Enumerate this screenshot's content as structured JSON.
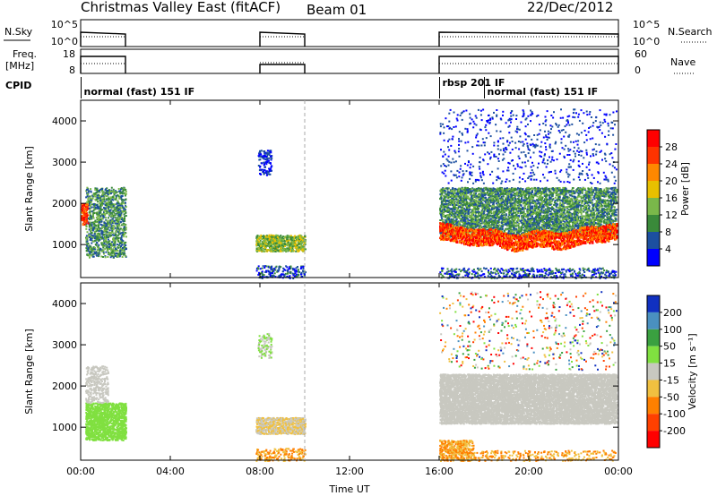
{
  "header": {
    "title": "Christmas Valley East (fitACF)",
    "beam": "Beam 01",
    "date": "22/Dec/2012"
  },
  "side_labels": {
    "nsky": "N.Sky",
    "nsearch": "N.Search",
    "freq": "Freq.",
    "freq_unit": "[MHz]",
    "nave": "Nave",
    "cpid": "CPID"
  },
  "noise_axis": {
    "left": [
      "10^5",
      "10^0"
    ],
    "right": [
      "10^5",
      "10^0"
    ]
  },
  "freq_axis": {
    "left": [
      "18",
      "8"
    ],
    "right": [
      "60",
      "0"
    ]
  },
  "cpid_labels": [
    {
      "text": "normal (fast) 151 IF",
      "hour": 0.1
    },
    {
      "text": "rbsp 201 IF",
      "hour": 16.1
    },
    {
      "text": "normal (fast) 151 IF",
      "hour": 18.1
    }
  ],
  "operation_segments": [
    [
      0,
      2
    ],
    [
      8,
      10
    ],
    [
      16,
      24
    ]
  ],
  "x_axis": {
    "label": "Time UT",
    "ticks": [
      "00:00",
      "04:00",
      "08:00",
      "12:00",
      "16:00",
      "20:00",
      "00:00"
    ],
    "range_hours": [
      0,
      24
    ]
  },
  "y_axis": {
    "label": "Slant Range [km]",
    "ticks": [
      "1000",
      "2000",
      "3000",
      "4000"
    ],
    "range_km": [
      200,
      4500
    ]
  },
  "power_scale": {
    "label": "Power [dB]",
    "ticks": [
      "4",
      "8",
      "12",
      "16",
      "20",
      "24",
      "28"
    ],
    "colors": [
      "#0000ff",
      "#1c4fa0",
      "#3a8a3a",
      "#7ab84a",
      "#e8c000",
      "#ff8800",
      "#ff3300",
      "#ff0000"
    ]
  },
  "velocity_scale": {
    "label": "Velocity [m s⁻¹]",
    "ticks": [
      "200",
      "100",
      "50",
      "15",
      "-15",
      "-50",
      "-100",
      "-200"
    ],
    "colors": [
      "#1030c0",
      "#4a90c0",
      "#3aa040",
      "#80e040",
      "#c8c8c0",
      "#f0c040",
      "#ff8000",
      "#ff4000",
      "#ff0000"
    ]
  },
  "chart_data": [
    {
      "type": "heatmap",
      "title": "",
      "xlabel": "Time UT",
      "ylabel": "Slant Range [km]",
      "colorbar": "Power [dB]",
      "xlim_hours": [
        0,
        24
      ],
      "ylim_km": [
        200,
        4500
      ],
      "regions": [
        {
          "t0": 0.0,
          "t1": 0.3,
          "r0": 1500,
          "r1": 2000,
          "value": "power 20-28 dB"
        },
        {
          "t0": 0.2,
          "t1": 2.0,
          "r0": 700,
          "r1": 2400,
          "value": "power 4-16 dB"
        },
        {
          "t0": 7.9,
          "t1": 8.5,
          "r0": 2700,
          "r1": 3300,
          "value": "power 4-8 dB"
        },
        {
          "t0": 7.8,
          "t1": 10.0,
          "r0": 850,
          "r1": 1250,
          "value": "power 12-20 dB"
        },
        {
          "t0": 16.0,
          "t1": 23.9,
          "r0": 900,
          "r1": 1800,
          "value": "power 20-28 dB"
        },
        {
          "t0": 16.0,
          "t1": 23.9,
          "r0": 1200,
          "r1": 2400,
          "value": "power 4-16 dB"
        },
        {
          "t0": 16.0,
          "t1": 23.9,
          "r0": 2500,
          "r1": 4300,
          "value": "power 4-8 dB scattered"
        }
      ]
    },
    {
      "type": "heatmap",
      "title": "",
      "xlabel": "Time UT",
      "ylabel": "Slant Range [km]",
      "colorbar": "Velocity [m s⁻¹]",
      "xlim_hours": [
        0,
        24
      ],
      "ylim_km": [
        200,
        4500
      ],
      "regions": [
        {
          "t0": 0.2,
          "t1": 2.0,
          "r0": 700,
          "r1": 1600,
          "value": "velocity 15-50 m/s"
        },
        {
          "t0": 0.2,
          "t1": 1.2,
          "r0": 1600,
          "r1": 2500,
          "value": "velocity -15-15 m/s"
        },
        {
          "t0": 7.8,
          "t1": 10.0,
          "r0": 850,
          "r1": 1250,
          "value": "velocity -50-15 m/s"
        },
        {
          "t0": 16.0,
          "t1": 23.9,
          "r0": 1100,
          "r1": 2300,
          "value": "velocity -15-15 m/s"
        },
        {
          "t0": 16.0,
          "t1": 17.5,
          "r0": 200,
          "r1": 700,
          "value": "velocity -50 m/s"
        }
      ]
    }
  ]
}
